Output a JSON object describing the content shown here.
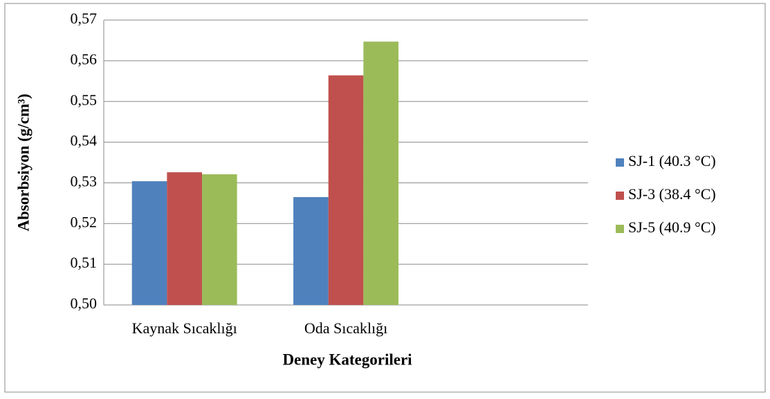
{
  "chart_data": {
    "type": "bar",
    "x_label": "Deney Kategorileri",
    "y_label": "Absorbsiyon (g/cm³)",
    "categories": [
      "Kaynak Sıcaklığı",
      "Oda Sıcaklığı",
      null
    ],
    "series": [
      {
        "name": "SJ-1 (40.3 °C)",
        "color": "#4f81bd",
        "values": [
          0.5304,
          0.5265,
          null
        ]
      },
      {
        "name": "SJ-3 (38.4 °C)",
        "color": "#c0504d",
        "values": [
          0.5326,
          0.5564,
          null
        ]
      },
      {
        "name": "SJ-5 (40.9 °C)",
        "color": "#9bbb59",
        "values": [
          0.5321,
          0.5647,
          null
        ]
      }
    ],
    "ylim": [
      0.5,
      0.57
    ],
    "yticks": [
      {
        "value": 0.5,
        "label": "0,50"
      },
      {
        "value": 0.51,
        "label": "0,51"
      },
      {
        "value": 0.52,
        "label": "0,52"
      },
      {
        "value": 0.53,
        "label": "0,53"
      },
      {
        "value": 0.54,
        "label": "0,54"
      },
      {
        "value": 0.55,
        "label": "0,55"
      },
      {
        "value": 0.56,
        "label": "0,56"
      },
      {
        "value": 0.57,
        "label": "0,57"
      }
    ],
    "grid": true,
    "legend": "right"
  }
}
